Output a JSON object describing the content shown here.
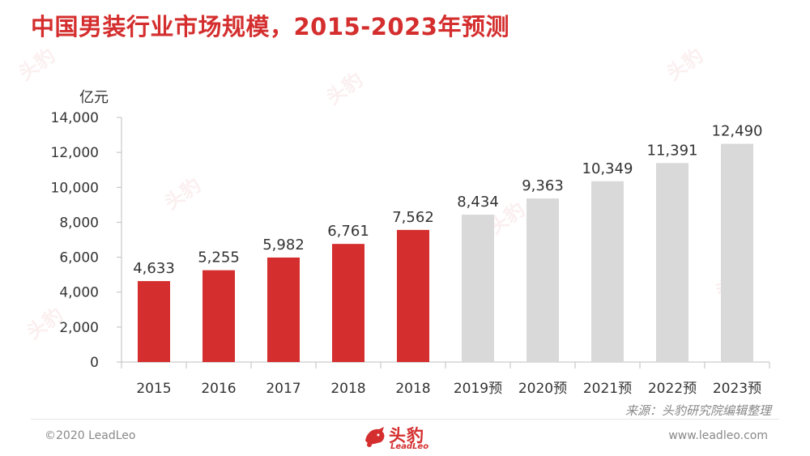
{
  "title": "中国男装行业市场规模，2015-2023年预测",
  "unit": "亿元",
  "source": "来源：头豹研究院编辑整理",
  "footer": {
    "copyright": "©2020 LeadLeo",
    "website": "www.leadleo.com",
    "logo_cn": "头豹",
    "logo_en": "LeadLeo"
  },
  "colors": {
    "actual": "#d42e2e",
    "forecast": "#d9d9d9",
    "title": "#d42e2e"
  },
  "chart_data": {
    "type": "bar",
    "title": "中国男装行业市场规模，2015-2023年预测",
    "ylabel": "亿元",
    "xlabel": "",
    "ylim": [
      0,
      14000
    ],
    "yticks": [
      0,
      2000,
      4000,
      6000,
      8000,
      10000,
      12000,
      14000
    ],
    "ytick_labels": [
      "0",
      "2,000",
      "4,000",
      "6,000",
      "8,000",
      "10,000",
      "12,000",
      "14,000"
    ],
    "grid": false,
    "categories": [
      "2015",
      "2016",
      "2017",
      "2018",
      "2018",
      "2019预",
      "2020预",
      "2021预",
      "2022预",
      "2023预"
    ],
    "values": [
      4633,
      5255,
      5982,
      6761,
      7562,
      8434,
      9363,
      10349,
      11391,
      12490
    ],
    "value_labels": [
      "4,633",
      "5,255",
      "5,982",
      "6,761",
      "7,562",
      "8,434",
      "9,363",
      "10,349",
      "11,391",
      "12,490"
    ],
    "kind": [
      "actual",
      "actual",
      "actual",
      "actual",
      "actual",
      "forecast",
      "forecast",
      "forecast",
      "forecast",
      "forecast"
    ]
  }
}
